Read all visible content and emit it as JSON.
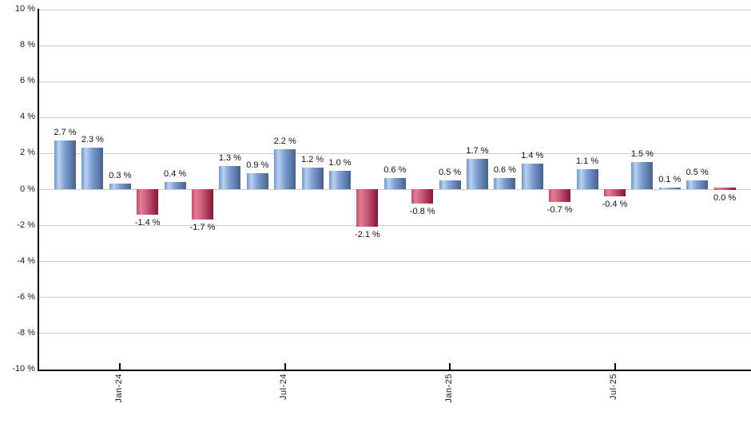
{
  "chart_data": {
    "type": "bar",
    "title": "",
    "xlabel": "",
    "ylabel": "",
    "ylim": [
      -10,
      10
    ],
    "y_tick_step": 2,
    "grid": true,
    "legend": false,
    "y_tick_labels": [
      "10 %",
      "8 %",
      "6 %",
      "4 %",
      "2 %",
      "0 %",
      "-2 %",
      "-4 %",
      "-6 %",
      "-8 %",
      "-10 %"
    ],
    "y_tick_values": [
      10,
      8,
      6,
      4,
      2,
      0,
      -2,
      -4,
      -6,
      -8,
      -10
    ],
    "x_ticks": [
      {
        "label": "Jan-24",
        "bar_index": 2
      },
      {
        "label": "Jul-24",
        "bar_index": 8
      },
      {
        "label": "Jan-25",
        "bar_index": 14
      },
      {
        "label": "Jul-25",
        "bar_index": 20
      }
    ],
    "values": [
      2.7,
      2.3,
      0.3,
      -1.4,
      0.4,
      -1.7,
      1.3,
      0.9,
      2.2,
      1.2,
      1.0,
      -2.1,
      0.6,
      -0.8,
      0.5,
      1.7,
      0.6,
      1.4,
      -0.7,
      1.1,
      -0.4,
      1.5,
      0.1,
      0.5,
      0.0
    ],
    "bar_labels": [
      "2.7 %",
      "2.3 %",
      "0.3 %",
      "-1.4 %",
      "0.4 %",
      "-1.7 %",
      "1.3 %",
      "0.9 %",
      "2.2 %",
      "1.2 %",
      "1.0 %",
      "-2.1 %",
      "0.6 %",
      "-0.8 %",
      "0.5 %",
      "1.7 %",
      "0.6 %",
      "1.4 %",
      "-0.7 %",
      "1.1 %",
      "-0.4 %",
      "1.5 %",
      "0.1 %",
      "0.5 %",
      "0.0 %"
    ],
    "bar_colors": [
      "blue",
      "blue",
      "blue",
      "red",
      "blue",
      "red",
      "blue",
      "blue",
      "blue",
      "blue",
      "blue",
      "red",
      "blue",
      "red",
      "blue",
      "blue",
      "blue",
      "blue",
      "red",
      "blue",
      "red",
      "blue",
      "blue",
      "blue",
      "red"
    ],
    "colors": {
      "positive_bar": "#6f94cd",
      "positive_bar_highlight": "#b9d1ef",
      "positive_bar_shadow": "#47618f",
      "negative_bar": "#c14e6b",
      "negative_bar_highlight": "#e17d93",
      "negative_bar_shadow": "#8a1332",
      "gridline": "#cccccc",
      "axis": "#000000",
      "text": "#1a1a1a",
      "background": "#ffffff"
    }
  }
}
